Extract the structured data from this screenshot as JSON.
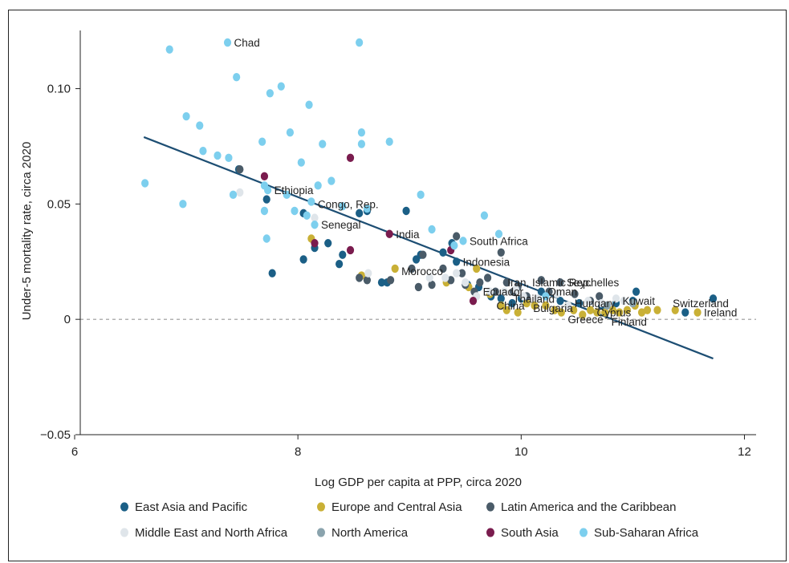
{
  "chart_data": {
    "type": "scatter",
    "xlabel": "Log GDP per capita at PPP, circa 2020",
    "ylabel": "Under-5 mortality rate, circa 2020",
    "xlim": [
      6,
      12.08
    ],
    "ylim": [
      -0.05,
      0.128
    ],
    "xticks": [
      {
        "value": 6,
        "label": "6"
      },
      {
        "value": 8,
        "label": "8"
      },
      {
        "value": 10,
        "label": "10"
      },
      {
        "value": 12,
        "label": "12"
      }
    ],
    "yticks": [
      {
        "value": -0.05,
        "label": "−0.05"
      },
      {
        "value": 0,
        "label": "0"
      },
      {
        "value": 0.05,
        "label": "0.05"
      },
      {
        "value": 0.1,
        "label": "0.10"
      }
    ],
    "zero_line": true,
    "fit_line": {
      "x": [
        6.62,
        11.72
      ],
      "y": [
        0.079,
        -0.017
      ],
      "color": "#1d4e73"
    },
    "grid": false,
    "legend_position": "bottom",
    "series": [
      {
        "name": "East Asia and Pacific",
        "color": "#1b5f86",
        "points": [
          [
            7.47,
            0.065
          ],
          [
            7.72,
            0.052
          ],
          [
            7.77,
            0.02
          ],
          [
            8.05,
            0.026
          ],
          [
            8.05,
            0.046
          ],
          [
            8.15,
            0.031
          ],
          [
            8.27,
            0.033
          ],
          [
            8.37,
            0.024
          ],
          [
            8.4,
            0.028
          ],
          [
            8.55,
            0.046
          ],
          [
            8.62,
            0.047
          ],
          [
            8.75,
            0.016
          ],
          [
            8.8,
            0.016
          ],
          [
            8.97,
            0.047
          ],
          [
            9.06,
            0.026
          ],
          [
            9.1,
            0.028
          ],
          [
            9.3,
            0.029
          ],
          [
            9.38,
            0.033
          ],
          [
            9.42,
            0.025
          ],
          [
            9.52,
            0.015
          ],
          [
            9.62,
            0.014
          ],
          [
            9.73,
            0.01
          ],
          [
            9.82,
            0.009
          ],
          [
            9.92,
            0.007
          ],
          [
            10.0,
            0.009
          ],
          [
            10.18,
            0.012
          ],
          [
            10.35,
            0.008
          ],
          [
            10.52,
            0.007
          ],
          [
            10.72,
            0.006
          ],
          [
            10.85,
            0.007
          ],
          [
            11.03,
            0.012
          ],
          [
            11.0,
            0.008
          ],
          [
            11.47,
            0.003
          ],
          [
            11.72,
            0.009
          ]
        ]
      },
      {
        "name": "Europe and Central Asia",
        "color": "#c9b036",
        "points": [
          [
            8.12,
            0.035
          ],
          [
            8.57,
            0.019
          ],
          [
            8.87,
            0.022
          ],
          [
            9.33,
            0.016
          ],
          [
            9.53,
            0.014
          ],
          [
            9.6,
            0.022
          ],
          [
            9.72,
            0.011
          ],
          [
            9.82,
            0.006
          ],
          [
            9.87,
            0.004
          ],
          [
            9.97,
            0.003
          ],
          [
            10.05,
            0.007
          ],
          [
            10.12,
            0.006
          ],
          [
            10.22,
            0.006
          ],
          [
            10.3,
            0.004
          ],
          [
            10.36,
            0.003
          ],
          [
            10.42,
            0.006
          ],
          [
            10.47,
            0.004
          ],
          [
            10.55,
            0.002
          ],
          [
            10.62,
            0.004
          ],
          [
            10.68,
            0.003
          ],
          [
            10.75,
            0.003
          ],
          [
            10.82,
            0.004
          ],
          [
            10.88,
            0.003
          ],
          [
            10.95,
            0.004
          ],
          [
            11.02,
            0.006
          ],
          [
            11.08,
            0.003
          ],
          [
            11.13,
            0.004
          ],
          [
            11.22,
            0.004
          ],
          [
            11.38,
            0.004
          ],
          [
            11.58,
            0.003
          ]
        ]
      },
      {
        "name": "Latin America and the Caribbean",
        "color": "#4a5b68",
        "points": [
          [
            7.48,
            0.065
          ],
          [
            8.55,
            0.018
          ],
          [
            8.62,
            0.017
          ],
          [
            8.83,
            0.017
          ],
          [
            9.02,
            0.022
          ],
          [
            9.08,
            0.014
          ],
          [
            9.12,
            0.028
          ],
          [
            9.2,
            0.015
          ],
          [
            9.3,
            0.022
          ],
          [
            9.37,
            0.017
          ],
          [
            9.42,
            0.036
          ],
          [
            9.47,
            0.02
          ],
          [
            9.5,
            0.015
          ],
          [
            9.58,
            0.012
          ],
          [
            9.63,
            0.016
          ],
          [
            9.7,
            0.018
          ],
          [
            9.77,
            0.012
          ],
          [
            9.82,
            0.029
          ],
          [
            9.87,
            0.016
          ],
          [
            9.93,
            0.012
          ],
          [
            9.97,
            0.014
          ],
          [
            10.05,
            0.01
          ],
          [
            10.18,
            0.017
          ],
          [
            10.25,
            0.012
          ],
          [
            10.35,
            0.016
          ],
          [
            10.48,
            0.011
          ],
          [
            10.62,
            0.008
          ],
          [
            10.7,
            0.01
          ]
        ]
      },
      {
        "name": "Middle East and North Africa",
        "color": "#dfe5ea",
        "points": [
          [
            7.48,
            0.055
          ],
          [
            8.15,
            0.044
          ],
          [
            8.63,
            0.02
          ],
          [
            9.18,
            0.018
          ],
          [
            9.32,
            0.018
          ],
          [
            9.42,
            0.02
          ],
          [
            9.5,
            0.016
          ],
          [
            9.6,
            0.01
          ],
          [
            9.72,
            0.012
          ],
          [
            9.85,
            0.012
          ],
          [
            9.95,
            0.013
          ],
          [
            10.02,
            0.01
          ],
          [
            10.15,
            0.009
          ],
          [
            10.32,
            0.011
          ],
          [
            10.42,
            0.006
          ],
          [
            10.6,
            0.008
          ],
          [
            10.72,
            0.007
          ],
          [
            10.85,
            0.009
          ],
          [
            10.92,
            0.008
          ]
        ]
      },
      {
        "name": "North America",
        "color": "#8aa3ad",
        "points": [
          [
            10.77,
            0.006
          ],
          [
            11.0,
            0.007
          ]
        ]
      },
      {
        "name": "South Asia",
        "color": "#7a1c4e",
        "points": [
          [
            7.7,
            0.062
          ],
          [
            8.15,
            0.033
          ],
          [
            8.47,
            0.07
          ],
          [
            8.47,
            0.03
          ],
          [
            8.82,
            0.037
          ],
          [
            9.37,
            0.03
          ],
          [
            9.57,
            0.008
          ]
        ]
      },
      {
        "name": "Sub-Saharan Africa",
        "color": "#7dcfee",
        "points": [
          [
            6.63,
            0.059
          ],
          [
            6.85,
            0.117
          ],
          [
            6.97,
            0.05
          ],
          [
            7.0,
            0.088
          ],
          [
            7.12,
            0.084
          ],
          [
            7.15,
            0.073
          ],
          [
            7.28,
            0.071
          ],
          [
            7.37,
            0.12
          ],
          [
            7.38,
            0.07
          ],
          [
            7.42,
            0.054
          ],
          [
            7.45,
            0.105
          ],
          [
            7.68,
            0.077
          ],
          [
            7.7,
            0.058
          ],
          [
            7.7,
            0.047
          ],
          [
            7.72,
            0.035
          ],
          [
            7.73,
            0.056
          ],
          [
            7.75,
            0.098
          ],
          [
            7.85,
            0.101
          ],
          [
            7.9,
            0.054
          ],
          [
            7.93,
            0.081
          ],
          [
            7.97,
            0.047
          ],
          [
            8.03,
            0.068
          ],
          [
            8.08,
            0.045
          ],
          [
            8.1,
            0.093
          ],
          [
            8.12,
            0.051
          ],
          [
            8.15,
            0.041
          ],
          [
            8.18,
            0.058
          ],
          [
            8.22,
            0.076
          ],
          [
            8.3,
            0.06
          ],
          [
            8.4,
            0.049
          ],
          [
            8.55,
            0.12
          ],
          [
            8.57,
            0.081
          ],
          [
            8.57,
            0.076
          ],
          [
            8.62,
            0.048
          ],
          [
            8.82,
            0.077
          ],
          [
            9.1,
            0.054
          ],
          [
            9.2,
            0.039
          ],
          [
            9.4,
            0.032
          ],
          [
            9.48,
            0.034
          ],
          [
            9.67,
            0.045
          ],
          [
            9.8,
            0.037
          ],
          [
            10.22,
            0.01
          ]
        ]
      }
    ],
    "annotations": [
      {
        "label": "Chad",
        "x": 7.37,
        "y": 0.12
      },
      {
        "label": "Ethiopia",
        "x": 7.73,
        "y": 0.056
      },
      {
        "label": "Congo, Rep.",
        "x": 8.12,
        "y": 0.05
      },
      {
        "label": "Senegal",
        "x": 8.15,
        "y": 0.041
      },
      {
        "label": "India",
        "x": 8.82,
        "y": 0.037
      },
      {
        "label": "South Africa",
        "x": 9.48,
        "y": 0.034
      },
      {
        "label": "Indonesia",
        "x": 9.42,
        "y": 0.025
      },
      {
        "label": "Morocco",
        "x": 8.87,
        "y": 0.021
      },
      {
        "label": "Iran, Islamic Rep.",
        "x": 9.82,
        "y": 0.016
      },
      {
        "label": "Seychelles",
        "x": 10.35,
        "y": 0.016
      },
      {
        "label": "Ecuador",
        "x": 9.6,
        "y": 0.012
      },
      {
        "label": "Oman",
        "x": 10.18,
        "y": 0.012
      },
      {
        "label": "Thailand",
        "x": 9.87,
        "y": 0.009
      },
      {
        "label": "Kuwait",
        "x": 10.85,
        "y": 0.008
      },
      {
        "label": "Switzerland",
        "x": 11.3,
        "y": 0.007
      },
      {
        "label": "Hungary",
        "x": 10.42,
        "y": 0.007
      },
      {
        "label": "China",
        "x": 9.72,
        "y": 0.006
      },
      {
        "label": "Bulgaria",
        "x": 10.05,
        "y": 0.005
      },
      {
        "label": "Cyprus",
        "x": 10.62,
        "y": 0.003
      },
      {
        "label": "Ireland",
        "x": 11.58,
        "y": 0.003
      },
      {
        "label": "Greece",
        "x": 10.36,
        "y": 0.0
      },
      {
        "label": "Finland",
        "x": 10.75,
        "y": -0.001
      }
    ]
  }
}
